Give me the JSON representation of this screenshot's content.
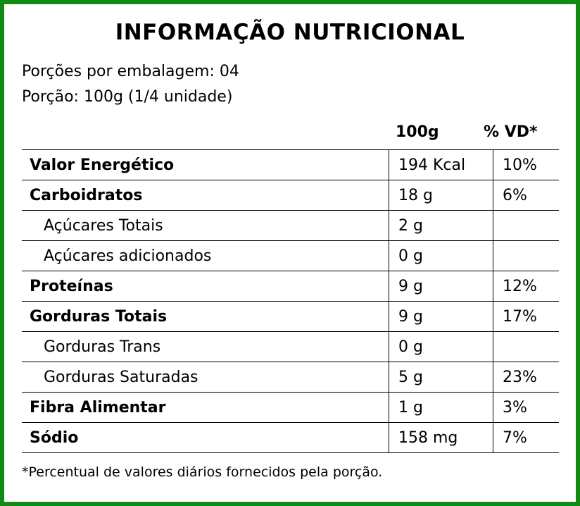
{
  "title": "INFORMAÇÃO NUTRICIONAL",
  "servings_per_package": "Porções por embalagem: 04",
  "serving_size": "Porção: 100g (1/4 unidade)",
  "columns": {
    "amount": "100g",
    "daily_value": "% VD*"
  },
  "rows": [
    {
      "name": "Valor Energético",
      "amount": "194 Kcal",
      "dv": "10%"
    },
    {
      "name": "Carboidratos",
      "amount": "18 g",
      "dv": "6%"
    },
    {
      "name": "Açúcares Totais",
      "amount": "2 g",
      "dv": ""
    },
    {
      "name": "Açúcares adicionados",
      "amount": "0 g",
      "dv": ""
    },
    {
      "name": "Proteínas",
      "amount": "9 g",
      "dv": "12%"
    },
    {
      "name": "Gorduras Totais",
      "amount": "9 g",
      "dv": "17%"
    },
    {
      "name": "Gorduras Trans",
      "amount": "0 g",
      "dv": ""
    },
    {
      "name": "Gorduras Saturadas",
      "amount": "5 g",
      "dv": "23%"
    },
    {
      "name": "Fibra Alimentar",
      "amount": "1 g",
      "dv": "3%"
    },
    {
      "name": "Sódio",
      "amount": "158 mg",
      "dv": "7%"
    }
  ],
  "footnote": "*Percentual de valores diários fornecidos pela porção.",
  "colors": {
    "border": "#138a13",
    "text": "#000000",
    "background": "#ffffff"
  }
}
